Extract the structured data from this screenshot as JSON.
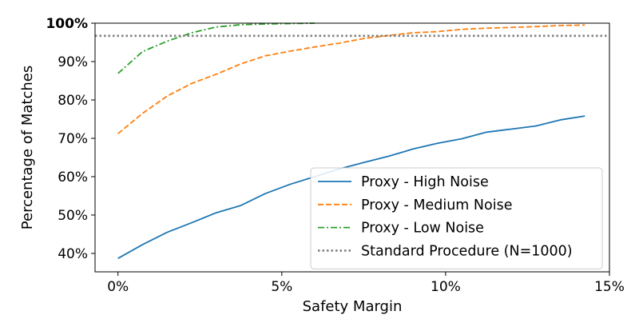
{
  "chart_data": {
    "type": "line",
    "title": "",
    "xlabel": "Safety Margin",
    "ylabel": "Percentage of Matches",
    "xlim": [
      -0.7,
      15
    ],
    "ylim": [
      35.2,
      100
    ],
    "x_ticks": [
      0,
      5,
      10,
      15
    ],
    "x_tick_labels": [
      "0%",
      "5%",
      "10%",
      "15%"
    ],
    "y_ticks": [
      40,
      50,
      60,
      70,
      80,
      90,
      100
    ],
    "y_tick_labels": [
      "40%",
      "50%",
      "60%",
      "70%",
      "80%",
      "90%",
      "100%"
    ],
    "grid": false,
    "legend_position": "lower-right",
    "series": [
      {
        "name": "Proxy - High Noise",
        "color": "#1f77b4",
        "style": "solid",
        "x": [
          0,
          0.75,
          1.5,
          2.25,
          3.0,
          3.75,
          4.5,
          5.25,
          6.0,
          6.75,
          7.5,
          8.25,
          9.0,
          9.75,
          10.5,
          11.25,
          12.0,
          12.75,
          13.5,
          14.25
        ],
        "y": [
          38.7,
          42.3,
          45.5,
          48.0,
          50.6,
          52.5,
          55.6,
          58.0,
          60.0,
          62.0,
          63.7,
          65.3,
          67.2,
          68.7,
          69.9,
          71.6,
          72.4,
          73.2,
          74.8,
          75.8
        ]
      },
      {
        "name": "Proxy - Medium Noise",
        "color": "#ff7f0e",
        "style": "dashed",
        "x": [
          0,
          0.75,
          1.5,
          2.25,
          3.0,
          3.75,
          4.5,
          5.25,
          6.0,
          6.75,
          7.5,
          8.25,
          9.0,
          9.75,
          10.5,
          11.25,
          12.0,
          12.75,
          13.5,
          14.25
        ],
        "y": [
          71.2,
          76.5,
          81.0,
          84.3,
          86.7,
          89.4,
          91.5,
          92.7,
          93.8,
          94.8,
          96.0,
          96.8,
          97.5,
          97.8,
          98.4,
          98.7,
          98.9,
          99.1,
          99.4,
          99.5
        ]
      },
      {
        "name": "Proxy - Low Noise",
        "color": "#2ca02c",
        "style": "dashdot",
        "x": [
          0,
          0.75,
          1.5,
          2.25,
          3.0,
          3.75,
          4.5,
          5.25,
          6.0
        ],
        "y": [
          86.9,
          92.6,
          95.3,
          97.5,
          99.0,
          99.6,
          99.8,
          99.9,
          100.0
        ]
      },
      {
        "name": "Standard Procedure (N=1000)",
        "color": "#808080",
        "style": "dotted",
        "type": "hline",
        "y": 96.7
      }
    ]
  }
}
